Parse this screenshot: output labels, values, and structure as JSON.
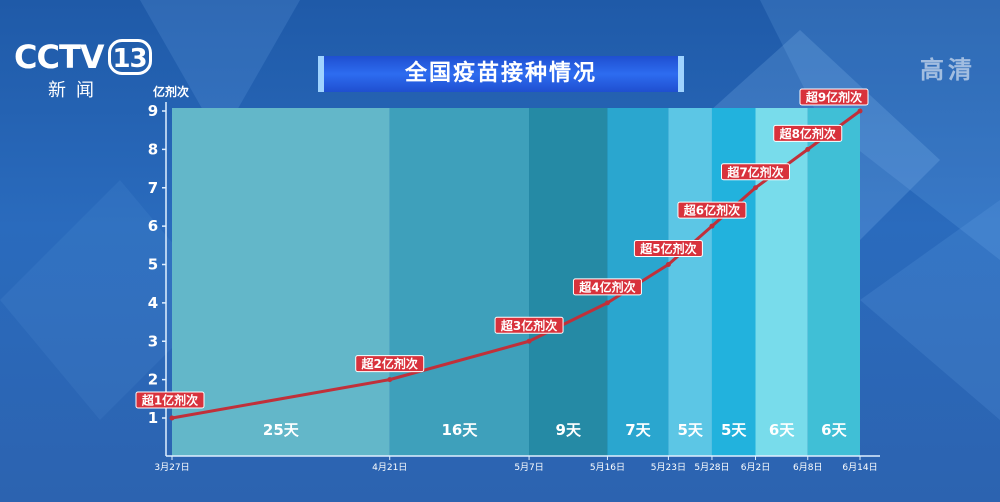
{
  "channel": {
    "logo_text": "CCTV",
    "logo_number": "13",
    "logo_sub": "新闻",
    "quality_badge": "高清"
  },
  "title": "全国疫苗接种情况",
  "colors": {
    "line": "#c0303a",
    "annotation_bg": "#d8323c",
    "bands": [
      "#63b7c9",
      "#3ea0bb",
      "#258aa5",
      "#2aa6cf",
      "#5cc6e5",
      "#22b2dd",
      "#78dceb",
      "#40bfd6"
    ]
  },
  "chart_data": {
    "type": "line",
    "title": "全国疫苗接种情况",
    "ylabel": "亿剂次",
    "ylim": [
      1,
      9
    ],
    "y_ticks": [
      "1",
      "2",
      "3",
      "4",
      "5",
      "6",
      "7",
      "8",
      "9"
    ],
    "x": [
      "3月27日",
      "4月21日",
      "5月7日",
      "5月16日",
      "5月23日",
      "5月28日",
      "6月2日",
      "6月8日",
      "6月14日"
    ],
    "series": [
      {
        "values": [
          1,
          2,
          3,
          4,
          5,
          6,
          7,
          8,
          9
        ]
      }
    ],
    "annotations": [
      "超1亿剂次",
      "超2亿剂次",
      "超3亿剂次",
      "超4亿剂次",
      "超5亿剂次",
      "超6亿剂次",
      "超7亿剂次",
      "超8亿剂次",
      "超9亿剂次"
    ],
    "interval_labels": [
      "25天",
      "16天",
      "9天",
      "7天",
      "5天",
      "5天",
      "6天",
      "6天"
    ],
    "grid": false
  }
}
